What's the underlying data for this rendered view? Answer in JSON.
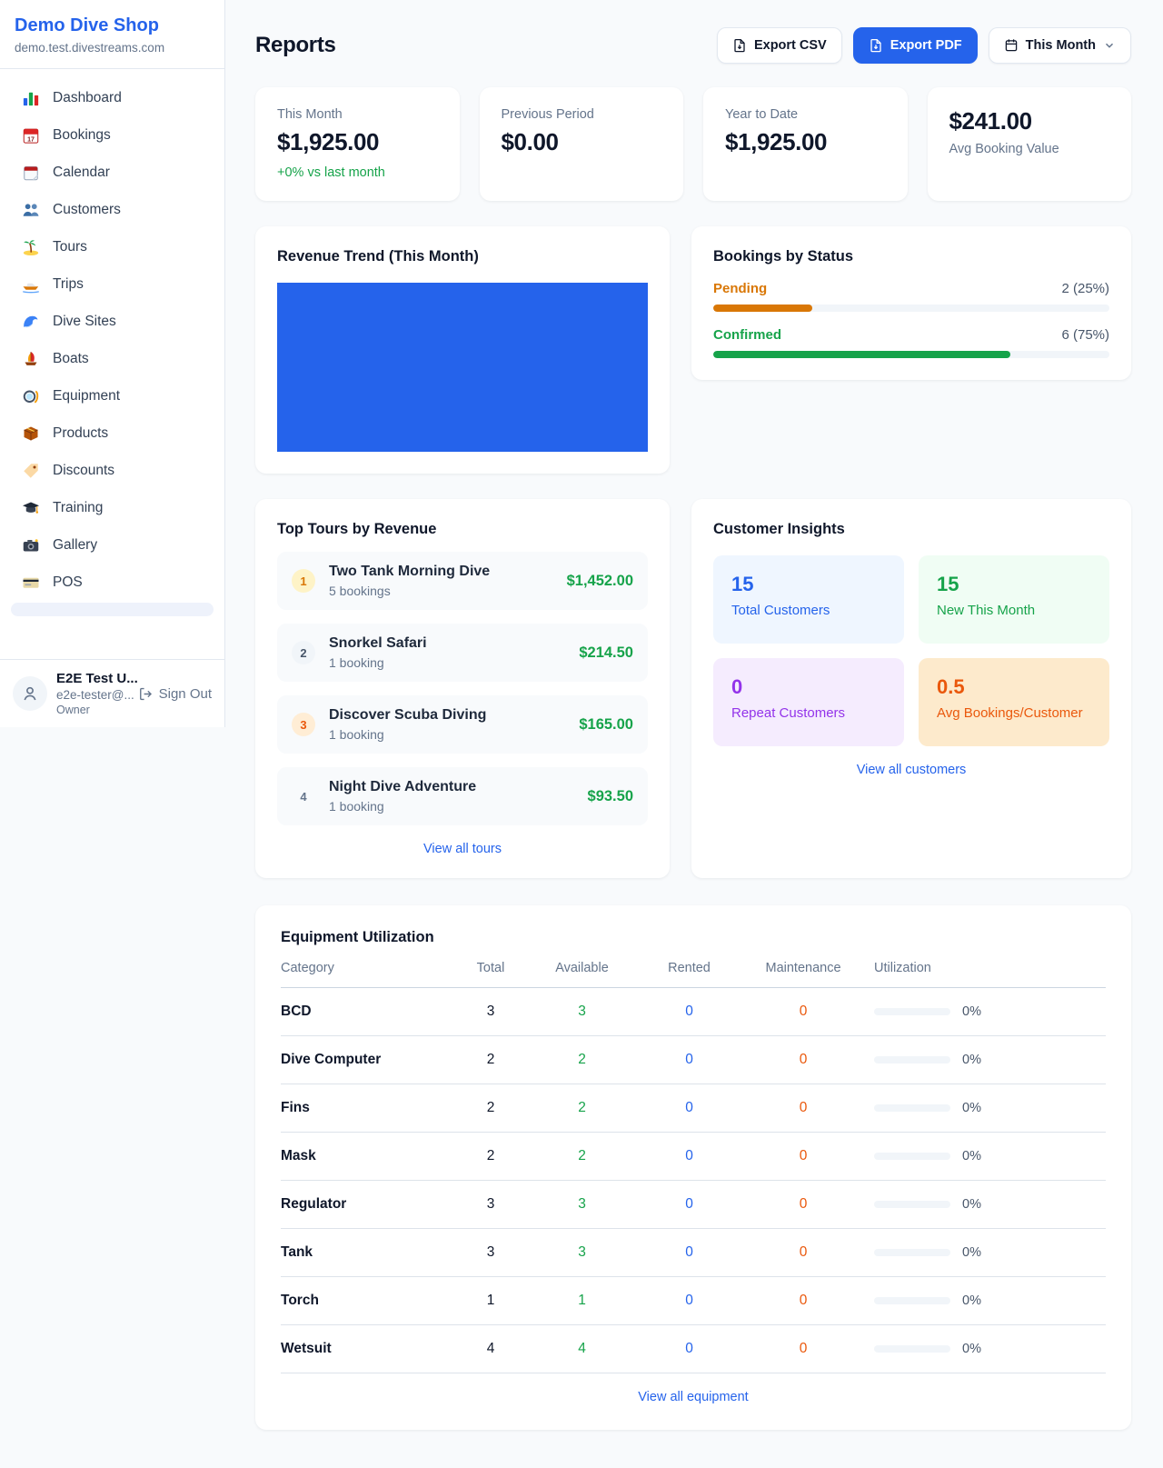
{
  "app": {
    "name": "Demo Dive Shop",
    "subdomain": "demo.test.divestreams.com"
  },
  "sidebar": {
    "items": [
      {
        "icon": "bar-chart-icon",
        "label": "Dashboard"
      },
      {
        "icon": "calendar-date-icon",
        "label": "Bookings"
      },
      {
        "icon": "calendar-pad-icon",
        "label": "Calendar"
      },
      {
        "icon": "people-icon",
        "label": "Customers"
      },
      {
        "icon": "island-icon",
        "label": "Tours"
      },
      {
        "icon": "speedboat-icon",
        "label": "Trips"
      },
      {
        "icon": "wave-icon",
        "label": "Dive Sites"
      },
      {
        "icon": "sailboat-icon",
        "label": "Boats"
      },
      {
        "icon": "dive-mask-icon",
        "label": "Equipment"
      },
      {
        "icon": "box-icon",
        "label": "Products"
      },
      {
        "icon": "tag-icon",
        "label": "Discounts"
      },
      {
        "icon": "grad-cap-icon",
        "label": "Training"
      },
      {
        "icon": "camera-icon",
        "label": "Gallery"
      },
      {
        "icon": "credit-card-icon",
        "label": "POS"
      }
    ],
    "user": {
      "name": "E2E Test U...",
      "email": "e2e-tester@...",
      "role": "Owner",
      "sign_out_label": "Sign Out",
      "avatar_icon": "user-icon",
      "sign_out_icon": "sign-out-icon"
    }
  },
  "header": {
    "title": "Reports",
    "buttons": {
      "csv": {
        "label": "Export CSV",
        "icon": "file-export-icon"
      },
      "pdf": {
        "label": "Export PDF",
        "icon": "file-export-icon"
      },
      "period": {
        "label": "This Month",
        "icon": "calendar-outline-icon",
        "chevron": "chevron-down-icon"
      }
    }
  },
  "stats": [
    {
      "label": "This Month",
      "value": "$1,925.00",
      "delta": "+0% vs last month"
    },
    {
      "label": "Previous Period",
      "value": "$0.00"
    },
    {
      "label": "Year to Date",
      "value": "$1,925.00"
    },
    {
      "label": "Avg Booking Value",
      "value": "$241.00"
    }
  ],
  "revenue_trend": {
    "title": "Revenue Trend (This Month)",
    "bar_color": "#2563eb"
  },
  "bookings_status": {
    "title": "Bookings by Status",
    "items": [
      {
        "label": "Pending",
        "count_text": "2 (25%)",
        "pct": 25,
        "color": "#d97706"
      },
      {
        "label": "Confirmed",
        "count_text": "6 (75%)",
        "pct": 75,
        "color": "#16a34a"
      }
    ]
  },
  "top_tours": {
    "title": "Top Tours by Revenue",
    "link": "View all tours",
    "items": [
      {
        "rank": "1",
        "name": "Two Tank Morning Dive",
        "bookings": "5 bookings",
        "revenue": "$1,452.00"
      },
      {
        "rank": "2",
        "name": "Snorkel Safari",
        "bookings": "1 booking",
        "revenue": "$214.50"
      },
      {
        "rank": "3",
        "name": "Discover Scuba Diving",
        "bookings": "1 booking",
        "revenue": "$165.00"
      },
      {
        "rank": "4",
        "name": "Night Dive Adventure",
        "bookings": "1 booking",
        "revenue": "$93.50"
      }
    ]
  },
  "customer_insights": {
    "title": "Customer Insights",
    "link": "View all customers",
    "tiles": [
      {
        "value": "15",
        "label": "Total Customers",
        "fg": "#2563eb",
        "bg": "#eff6ff"
      },
      {
        "value": "15",
        "label": "New This Month",
        "fg": "#16a34a",
        "bg": "#f0fdf4"
      },
      {
        "value": "0",
        "label": "Repeat Customers",
        "fg": "#9333ea",
        "bg": "#f5ecfe"
      },
      {
        "value": "0.5",
        "label": "Avg Bookings/Customer",
        "fg": "#ea580c",
        "bg": "#fdeacc"
      }
    ]
  },
  "equipment": {
    "title": "Equipment Utilization",
    "link": "View all equipment",
    "columns": [
      "Category",
      "Total",
      "Available",
      "Rented",
      "Maintenance",
      "Utilization"
    ],
    "rows": [
      {
        "category": "BCD",
        "total": "3",
        "available": "3",
        "rented": "0",
        "maintenance": "0",
        "utilization": "0%",
        "utilization_pct": 0
      },
      {
        "category": "Dive Computer",
        "total": "2",
        "available": "2",
        "rented": "0",
        "maintenance": "0",
        "utilization": "0%",
        "utilization_pct": 0
      },
      {
        "category": "Fins",
        "total": "2",
        "available": "2",
        "rented": "0",
        "maintenance": "0",
        "utilization": "0%",
        "utilization_pct": 0
      },
      {
        "category": "Mask",
        "total": "2",
        "available": "2",
        "rented": "0",
        "maintenance": "0",
        "utilization": "0%",
        "utilization_pct": 0
      },
      {
        "category": "Regulator",
        "total": "3",
        "available": "3",
        "rented": "0",
        "maintenance": "0",
        "utilization": "0%",
        "utilization_pct": 0
      },
      {
        "category": "Tank",
        "total": "3",
        "available": "3",
        "rented": "0",
        "maintenance": "0",
        "utilization": "0%",
        "utilization_pct": 0
      },
      {
        "category": "Torch",
        "total": "1",
        "available": "1",
        "rented": "0",
        "maintenance": "0",
        "utilization": "0%",
        "utilization_pct": 0
      },
      {
        "category": "Wetsuit",
        "total": "4",
        "available": "4",
        "rented": "0",
        "maintenance": "0",
        "utilization": "0%",
        "utilization_pct": 0
      }
    ]
  },
  "chart_data": [
    {
      "type": "bar",
      "title": "Revenue Trend (This Month)",
      "categories": [
        "This Month"
      ],
      "values": [
        1925.0
      ],
      "color": "#2563eb",
      "note": "single full-width solid blue bar filling entire plot area; no axes, gridlines or labels visible"
    },
    {
      "type": "bar",
      "title": "Bookings by Status",
      "categories": [
        "Pending",
        "Confirmed"
      ],
      "values": [
        2,
        6
      ],
      "labels": [
        "2 (25%)",
        "6 (75%)"
      ],
      "colors": [
        "#d97706",
        "#16a34a"
      ],
      "note": "horizontal progress bars, fill = percentage of bookings"
    }
  ]
}
